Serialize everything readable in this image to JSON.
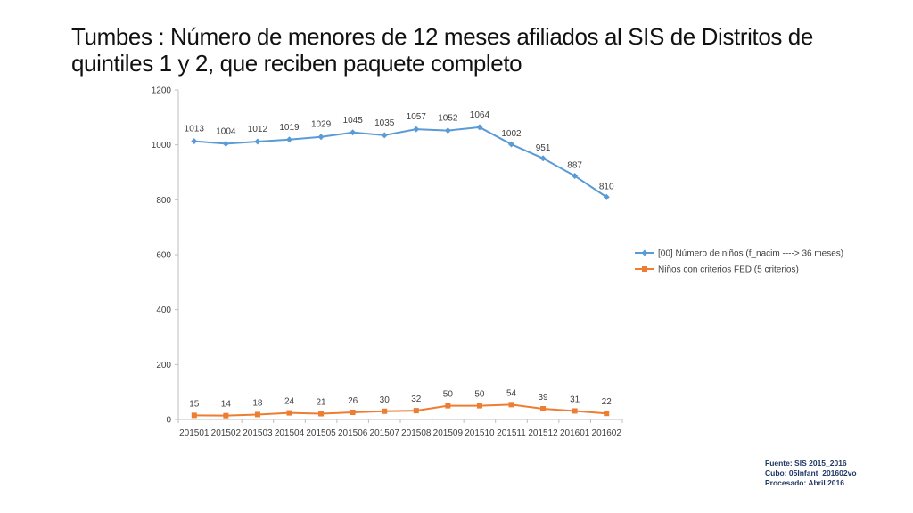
{
  "title": "Tumbes : Número de menores de 12 meses afiliados al SIS de Distritos de quintiles 1 y 2, que reciben paquete completo",
  "source_lines": [
    "Fuente: SIS 2015_2016",
    "Cubo: 05Infant_201602vo",
    "Procesado: Abril 2016"
  ],
  "chart_data": {
    "type": "line",
    "title": "",
    "xlabel": "",
    "ylabel": "",
    "ylim": [
      0,
      1200
    ],
    "yticks": [
      0,
      200,
      400,
      600,
      800,
      1000,
      1200
    ],
    "grid": false,
    "legend_position": "right",
    "categories": [
      "201501",
      "201502",
      "201503",
      "201504",
      "201505",
      "201506",
      "201507",
      "201508",
      "201509",
      "201510",
      "201511",
      "201512",
      "201601",
      "201602"
    ],
    "series": [
      {
        "name": "[00] Número de niños (f_nacim ----> 36 meses)",
        "color": "#5b9bd5",
        "marker": "diamond",
        "values": [
          1013,
          1004,
          1012,
          1019,
          1029,
          1045,
          1035,
          1057,
          1052,
          1064,
          1002,
          951,
          887,
          810
        ]
      },
      {
        "name": "Niños con criterios FED (5 criterios)",
        "color": "#ed7d31",
        "marker": "square",
        "values": [
          15,
          14,
          18,
          24,
          21,
          26,
          30,
          32,
          50,
          50,
          54,
          39,
          31,
          22
        ]
      }
    ]
  }
}
